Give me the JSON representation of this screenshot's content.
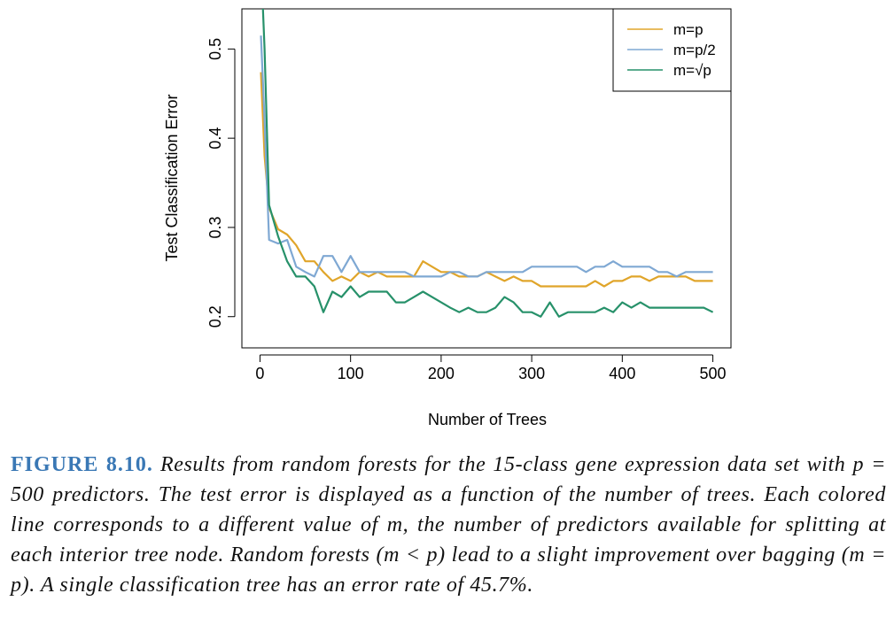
{
  "chart_data": {
    "type": "line",
    "title": "",
    "xlabel": "Number of Trees",
    "ylabel": "Test Classification Error",
    "xlim": [
      -20,
      520
    ],
    "ylim": [
      0.165,
      0.545
    ],
    "xticks": [
      0,
      100,
      200,
      300,
      400,
      500
    ],
    "xtick_labels": [
      "0",
      "100",
      "200",
      "300",
      "400",
      "500"
    ],
    "yticks": [
      0.2,
      0.3,
      0.4,
      0.5
    ],
    "ytick_labels": [
      "0.2",
      "0.3",
      "0.4",
      "0.5"
    ],
    "grid": false,
    "legend_position": "top-right",
    "x": [
      1,
      5,
      10,
      20,
      30,
      40,
      50,
      60,
      70,
      80,
      90,
      100,
      110,
      120,
      130,
      140,
      150,
      160,
      170,
      180,
      190,
      200,
      210,
      220,
      230,
      240,
      250,
      260,
      270,
      280,
      290,
      300,
      310,
      320,
      330,
      340,
      350,
      360,
      370,
      380,
      390,
      400,
      410,
      420,
      430,
      440,
      450,
      460,
      470,
      480,
      490,
      500
    ],
    "series": [
      {
        "name": "m=p",
        "color": "#e0a52a",
        "values": [
          0.474,
          0.38,
          0.322,
          0.298,
          0.292,
          0.28,
          0.262,
          0.262,
          0.25,
          0.24,
          0.245,
          0.24,
          0.25,
          0.245,
          0.25,
          0.245,
          0.245,
          0.245,
          0.245,
          0.262,
          0.256,
          0.25,
          0.25,
          0.245,
          0.245,
          0.245,
          0.25,
          0.245,
          0.24,
          0.245,
          0.24,
          0.24,
          0.234,
          0.234,
          0.234,
          0.234,
          0.234,
          0.234,
          0.24,
          0.234,
          0.24,
          0.24,
          0.245,
          0.245,
          0.24,
          0.245,
          0.245,
          0.245,
          0.245,
          0.24,
          0.24,
          0.24
        ]
      },
      {
        "name": "m=p/2",
        "color": "#7fa8d3",
        "values": [
          0.515,
          0.42,
          0.286,
          0.282,
          0.286,
          0.256,
          0.25,
          0.245,
          0.268,
          0.268,
          0.25,
          0.268,
          0.25,
          0.25,
          0.25,
          0.25,
          0.25,
          0.25,
          0.245,
          0.245,
          0.245,
          0.245,
          0.25,
          0.25,
          0.245,
          0.245,
          0.25,
          0.25,
          0.25,
          0.25,
          0.25,
          0.256,
          0.256,
          0.256,
          0.256,
          0.256,
          0.256,
          0.25,
          0.256,
          0.256,
          0.262,
          0.256,
          0.256,
          0.256,
          0.256,
          0.25,
          0.25,
          0.245,
          0.25,
          0.25,
          0.25,
          0.25
        ]
      },
      {
        "name": "m=√p",
        "color": "#27916a",
        "values": [
          0.6,
          0.5,
          0.325,
          0.29,
          0.262,
          0.245,
          0.245,
          0.234,
          0.205,
          0.228,
          0.222,
          0.234,
          0.222,
          0.228,
          0.228,
          0.228,
          0.216,
          0.216,
          0.222,
          0.228,
          0.222,
          0.216,
          0.21,
          0.205,
          0.21,
          0.205,
          0.205,
          0.21,
          0.222,
          0.216,
          0.205,
          0.205,
          0.2,
          0.216,
          0.2,
          0.205,
          0.205,
          0.205,
          0.205,
          0.21,
          0.205,
          0.216,
          0.21,
          0.216,
          0.21,
          0.21,
          0.21,
          0.21,
          0.21,
          0.21,
          0.21,
          0.205
        ]
      }
    ]
  },
  "caption": {
    "label": "FIGURE 8.10.",
    "text": "Results from random forests for the 15-class gene expression data set with p = 500 predictors. The test error is displayed as a function of the number of trees. Each colored line corresponds to a different value of m, the number of predictors available for splitting at each interior tree node. Random forests (m < p) lead to a slight improvement over bagging (m = p). A single classification tree has an error rate of 45.7%."
  }
}
